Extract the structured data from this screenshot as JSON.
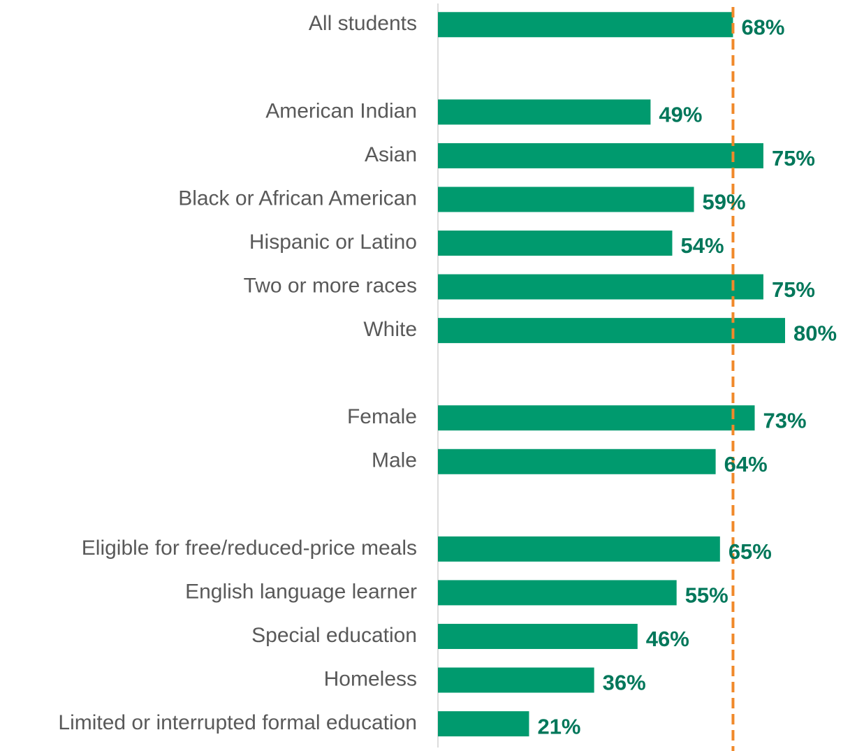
{
  "chart_data": {
    "type": "bar",
    "orientation": "horizontal",
    "categories": [
      "All students",
      null,
      "American Indian",
      "Asian",
      "Black or African American",
      "Hispanic or Latino",
      "Two or more races",
      "White",
      null,
      "Female",
      "Male",
      null,
      "Eligible for free/reduced-price meals",
      "English language learner",
      "Special education",
      "Homeless",
      "Limited or interrupted formal education"
    ],
    "values": [
      68,
      null,
      49,
      75,
      59,
      54,
      75,
      80,
      null,
      73,
      64,
      null,
      65,
      55,
      46,
      36,
      21
    ],
    "value_labels": [
      "68%",
      null,
      "49%",
      "75%",
      "59%",
      "54%",
      "75%",
      "80%",
      null,
      "73%",
      "64%",
      null,
      "65%",
      "55%",
      "46%",
      "36%",
      "21%"
    ],
    "color": "#009a6e",
    "xlim": [
      0,
      80
    ],
    "reference_line": {
      "value": 68,
      "color": "#f0892a"
    }
  }
}
